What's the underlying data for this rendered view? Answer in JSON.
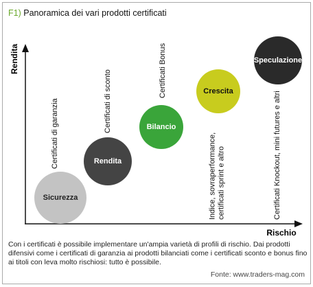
{
  "header": {
    "figure": "F1)",
    "title": "Panoramica dei vari prodotti certificati"
  },
  "axes": {
    "y_label": "Rendita",
    "x_label": "Rischio"
  },
  "nodes": [
    {
      "label": "Sicurezza",
      "note": [
        "Certificati di garanzia"
      ]
    },
    {
      "label": "Rendita",
      "note": [
        "Certificati di sconto"
      ]
    },
    {
      "label": "Bilancio",
      "note": [
        "Certificati Bonus"
      ]
    },
    {
      "label": "Crescita",
      "note": [
        "Indice, sovraperformance,",
        "certificati sprint e altro"
      ]
    },
    {
      "label": "Speculazione",
      "note": [
        "Certificati Knockout, mini futures e altri"
      ]
    }
  ],
  "caption": "Con i certificati è possibile implementare un'ampia varietà di profili di rischio. Dai prodotti difensivi come i certificati di garanzia ai prodotti bilanciati come i certificati sconto e bonus fino ai titoli con leva molto rischiosi: tutto è possibile.",
  "source": "Fonte: www.traders-mag.com"
}
